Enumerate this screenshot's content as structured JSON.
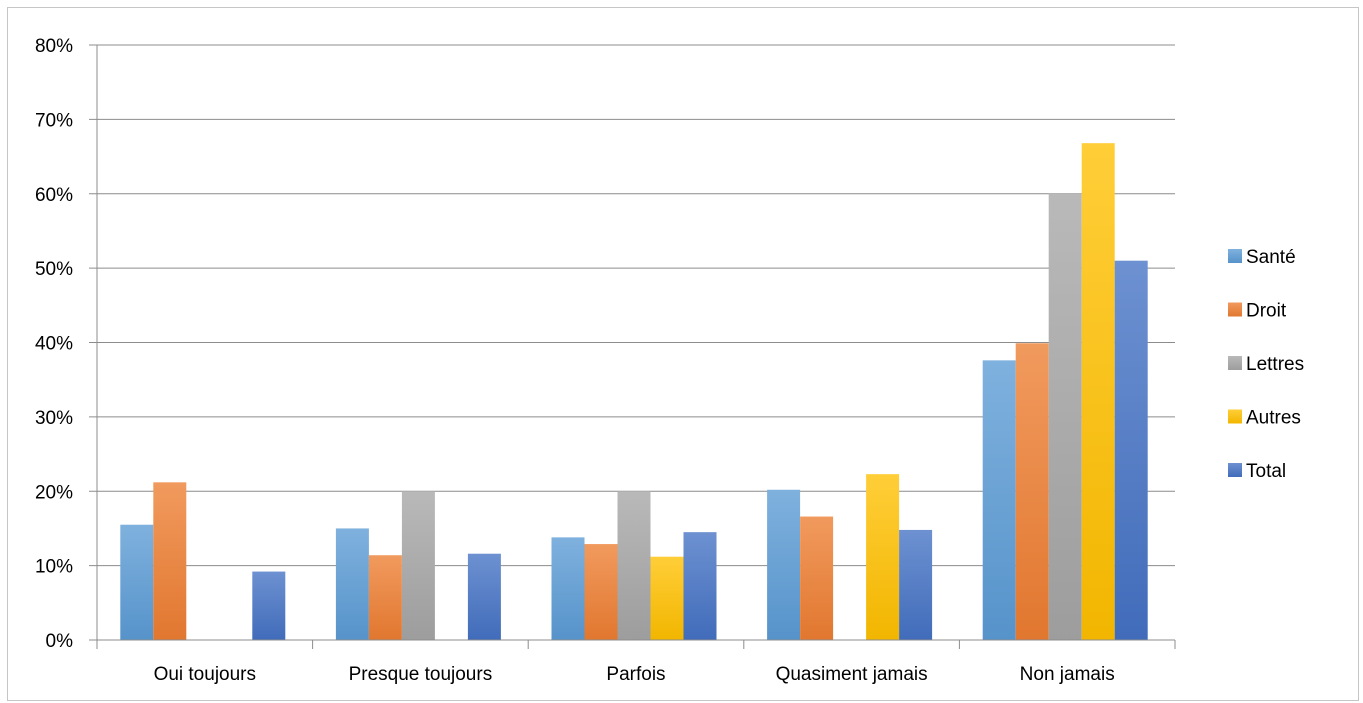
{
  "chart_data": {
    "type": "bar",
    "title": "",
    "xlabel": "",
    "ylabel": "",
    "categories": [
      "Oui toujours",
      "Presque toujours",
      "Parfois",
      "Quasiment jamais",
      "Non jamais"
    ],
    "ylim": [
      0,
      0.8
    ],
    "yticks": [
      "0%",
      "10%",
      "20%",
      "30%",
      "40%",
      "50%",
      "60%",
      "70%",
      "80%"
    ],
    "grid": true,
    "legend_position": "right",
    "series": [
      {
        "name": "Santé",
        "color": "#5b9bd5",
        "values": [
          0.155,
          0.15,
          0.138,
          0.202,
          0.376
        ]
      },
      {
        "name": "Droit",
        "color": "#ed7d31",
        "values": [
          0.212,
          0.114,
          0.129,
          0.166,
          0.399
        ]
      },
      {
        "name": "Lettres",
        "color": "#a5a5a5",
        "values": [
          0.0,
          0.2,
          0.2,
          0.0,
          0.6
        ]
      },
      {
        "name": "Autres",
        "color": "#ffc000",
        "values": [
          0.0,
          0.0,
          0.112,
          0.223,
          0.668
        ]
      },
      {
        "name": "Total",
        "color": "#4472c4",
        "values": [
          0.092,
          0.116,
          0.145,
          0.148,
          0.51
        ]
      }
    ]
  }
}
